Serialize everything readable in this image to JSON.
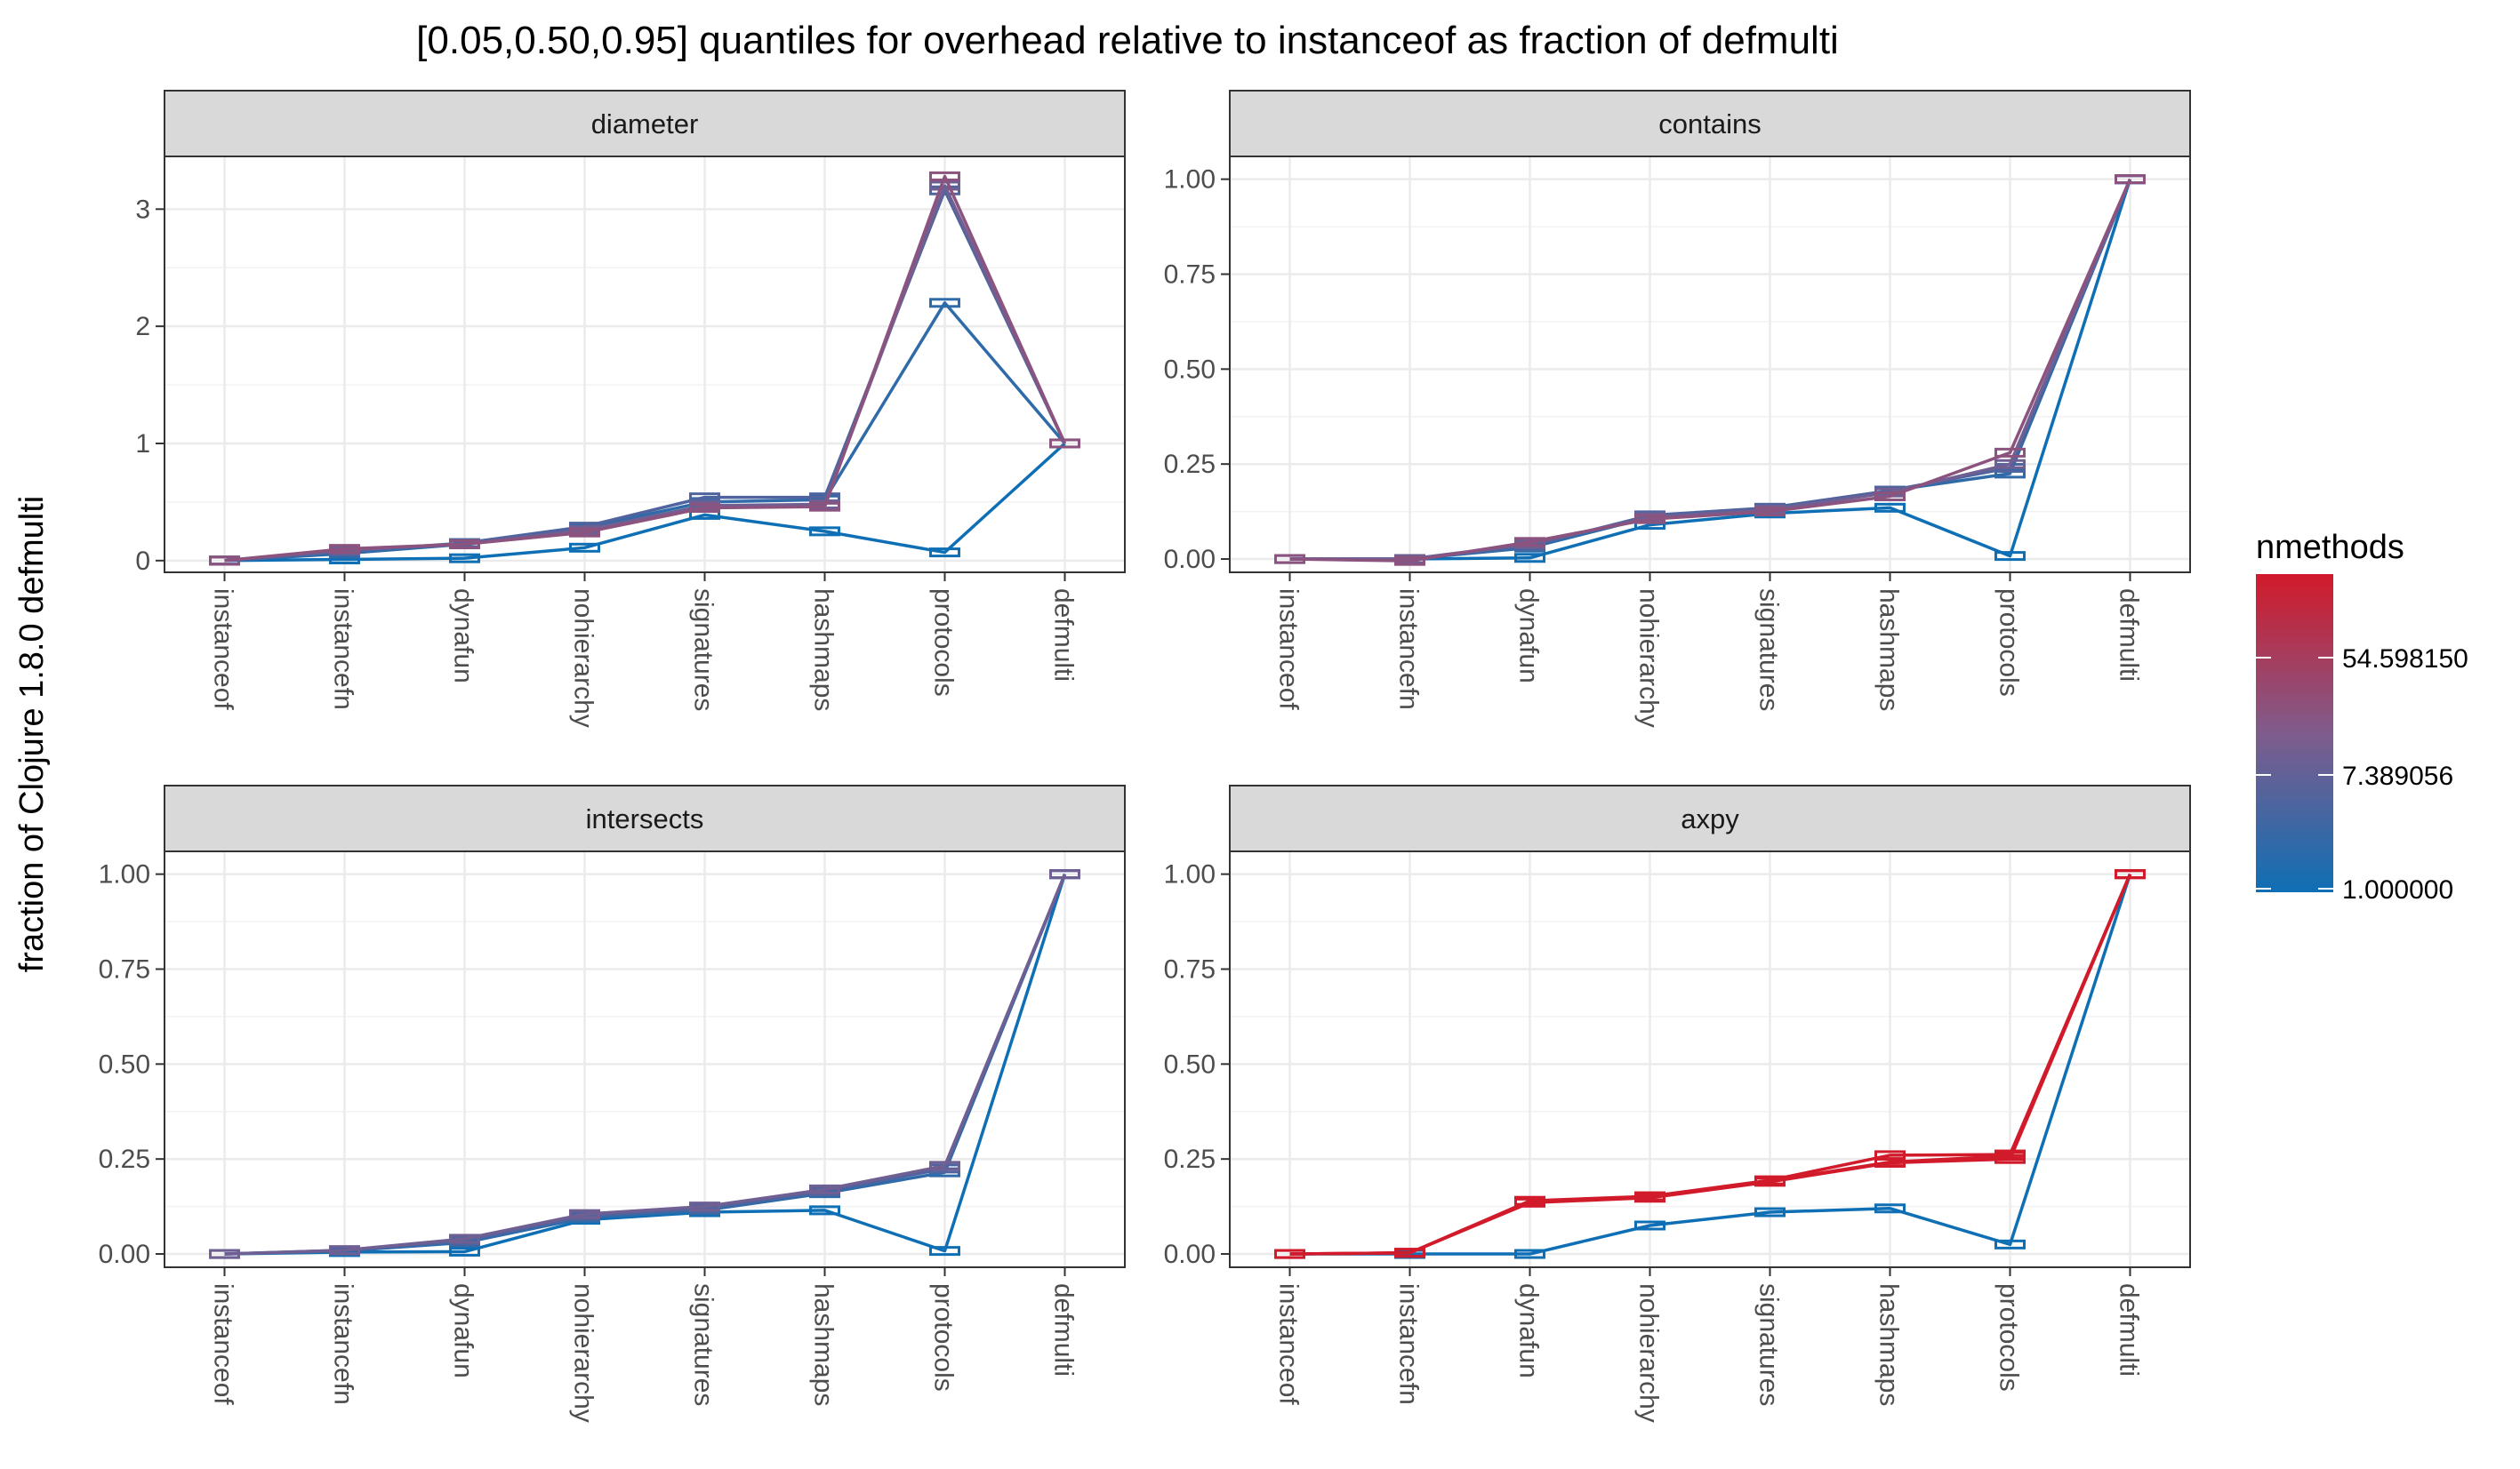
{
  "chart_data": {
    "type": "line",
    "title": "[0.05,0.50,0.95] quantiles for overhead relative to instanceof as fraction of defmulti",
    "ylabel": "fraction of Clojure 1.8.0 defmulti",
    "xlabel": "",
    "categories": [
      "instanceof",
      "instancefn",
      "dynafun",
      "nohierarchy",
      "signatures",
      "hashmaps",
      "protocols",
      "defmulti"
    ],
    "grid": true,
    "legend": {
      "title": "nmethods",
      "placement": "right",
      "scale": "log",
      "labels": [
        "54.598150",
        "7.389056",
        "1.000000"
      ],
      "low_color": "#0f6fb5",
      "mid_color": "#7f5c8c",
      "high_color": "#d11a2a"
    },
    "panels": [
      {
        "name": "diameter",
        "ylim": [
          -0.1,
          3.45
        ],
        "yticks": [
          0,
          1,
          2,
          3
        ],
        "ytick_labels": [
          "0",
          "1",
          "2",
          "3"
        ],
        "series": [
          {
            "nmethods": 1,
            "values": [
              0,
              0.01,
              0.02,
              0.11,
              0.39,
              0.25,
              0.07,
              1.0
            ]
          },
          {
            "nmethods": 2,
            "values": [
              0,
              0.06,
              0.14,
              0.28,
              0.5,
              0.52,
              2.2,
              1.0
            ]
          },
          {
            "nmethods": 4,
            "values": [
              0,
              0.08,
              0.15,
              0.29,
              0.54,
              0.54,
              3.16,
              1.0
            ]
          },
          {
            "nmethods": 8,
            "values": [
              0,
              0.09,
              0.14,
              0.26,
              0.47,
              0.48,
              3.2,
              1.0
            ]
          },
          {
            "nmethods": 16,
            "values": [
              0,
              0.1,
              0.14,
              0.24,
              0.45,
              0.46,
              3.28,
              1.0
            ]
          }
        ]
      },
      {
        "name": "contains",
        "ylim": [
          -0.035,
          1.06
        ],
        "yticks": [
          0,
          0.25,
          0.5,
          0.75,
          1.0
        ],
        "ytick_labels": [
          "0.00",
          "0.25",
          "0.50",
          "0.75",
          "1.00"
        ],
        "series": [
          {
            "nmethods": 1,
            "values": [
              0,
              0,
              0.003,
              0.09,
              0.12,
              0.135,
              0.008,
              1.0
            ]
          },
          {
            "nmethods": 2,
            "values": [
              0,
              0,
              0.03,
              0.11,
              0.13,
              0.18,
              0.225,
              1.0
            ]
          },
          {
            "nmethods": 4,
            "values": [
              0,
              0,
              0.035,
              0.115,
              0.135,
              0.18,
              0.24,
              1.0
            ]
          },
          {
            "nmethods": 8,
            "values": [
              0,
              0,
              0.04,
              0.11,
              0.13,
              0.175,
              0.25,
              1.0
            ]
          },
          {
            "nmethods": 16,
            "values": [
              0,
              -0.005,
              0.045,
              0.105,
              0.125,
              0.165,
              0.28,
              1.0
            ]
          }
        ]
      },
      {
        "name": "intersects",
        "ylim": [
          -0.035,
          1.06
        ],
        "yticks": [
          0,
          0.25,
          0.5,
          0.75,
          1.0
        ],
        "ytick_labels": [
          "0.00",
          "0.25",
          "0.50",
          "0.75",
          "1.00"
        ],
        "series": [
          {
            "nmethods": 1,
            "values": [
              0,
              0.005,
              0.006,
              0.09,
              0.11,
              0.115,
              0.008,
              1.0
            ]
          },
          {
            "nmethods": 2,
            "values": [
              0,
              0.008,
              0.03,
              0.095,
              0.115,
              0.16,
              0.215,
              1.0
            ]
          },
          {
            "nmethods": 4,
            "values": [
              0,
              0.01,
              0.035,
              0.1,
              0.12,
              0.165,
              0.225,
              1.0
            ]
          },
          {
            "nmethods": 8,
            "values": [
              0,
              0.01,
              0.04,
              0.105,
              0.125,
              0.17,
              0.232,
              1.0
            ]
          }
        ]
      },
      {
        "name": "axpy",
        "ylim": [
          -0.035,
          1.06
        ],
        "yticks": [
          0,
          0.25,
          0.5,
          0.75,
          1.0
        ],
        "ytick_labels": [
          "0.00",
          "0.25",
          "0.50",
          "0.75",
          "1.00"
        ],
        "series": [
          {
            "nmethods": 1,
            "values": [
              0,
              0,
              0,
              0.075,
              0.11,
              0.12,
              0.025,
              1.0
            ]
          },
          {
            "nmethods": 128,
            "values": [
              0,
              0.003,
              0.135,
              0.148,
              0.19,
              0.24,
              0.25,
              1.0
            ]
          },
          {
            "nmethods": 128,
            "values": [
              0,
              0.003,
              0.137,
              0.15,
              0.192,
              0.242,
              0.258,
              1.0
            ]
          },
          {
            "nmethods": 128,
            "values": [
              0,
              0.003,
              0.14,
              0.152,
              0.194,
              0.26,
              0.262,
              1.0
            ]
          }
        ]
      }
    ]
  }
}
